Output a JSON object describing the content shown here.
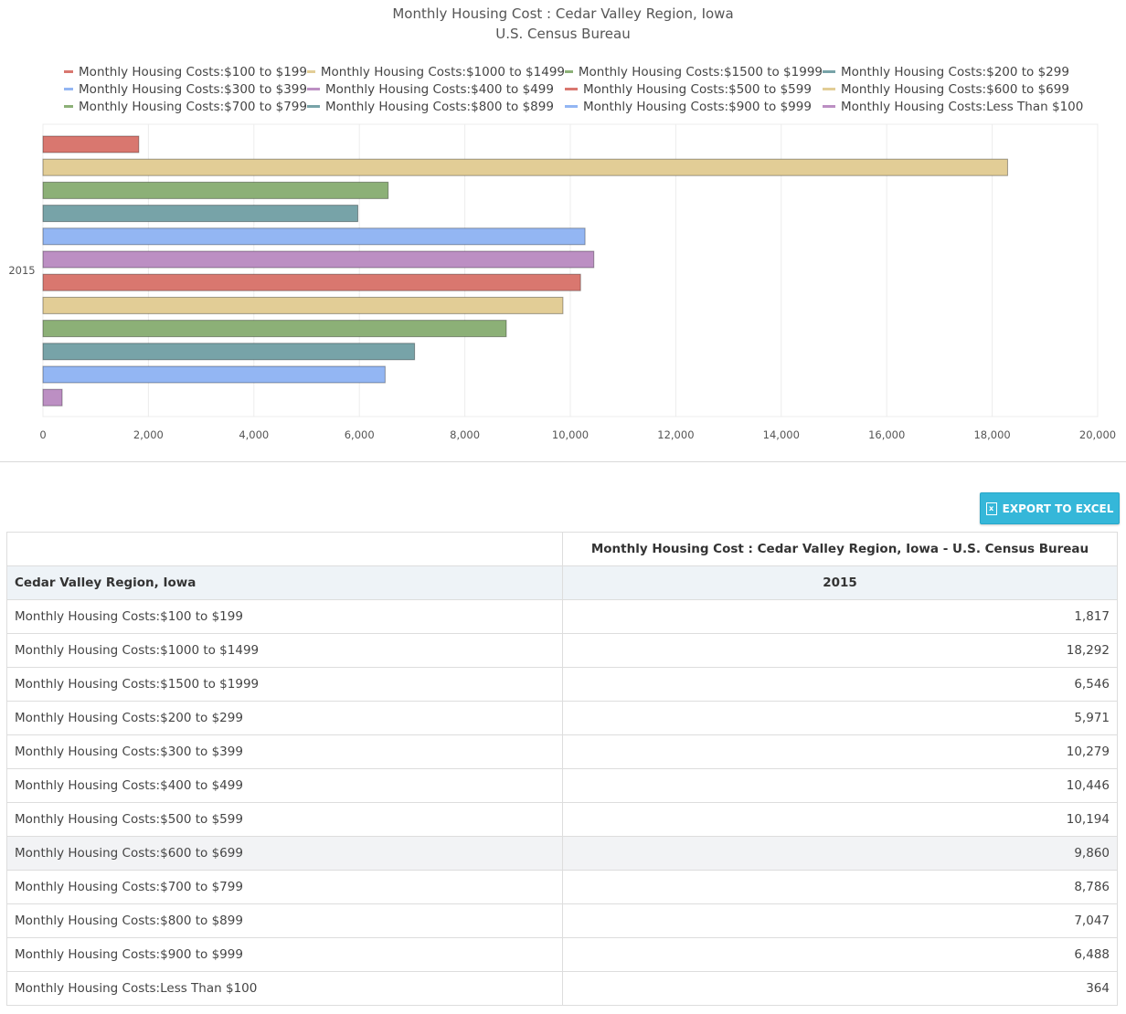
{
  "chart_data": {
    "type": "bar",
    "orientation": "horizontal",
    "title": "Monthly Housing Cost : Cedar Valley Region, Iowa",
    "subtitle": "U.S. Census Bureau",
    "categories": [
      "2015"
    ],
    "xlim": [
      0,
      20000
    ],
    "x_ticks": [
      "0",
      "2,000",
      "4,000",
      "6,000",
      "8,000",
      "10,000",
      "12,000",
      "14,000",
      "16,000",
      "18,000",
      "20,000"
    ],
    "grid": true,
    "legend_position": "top",
    "series": [
      {
        "name": "Monthly Housing Costs:$100 to $199",
        "values": [
          1817
        ],
        "color": "#d9776f"
      },
      {
        "name": "Monthly Housing Costs:$1000 to $1499",
        "values": [
          18292
        ],
        "color": "#e2cd96"
      },
      {
        "name": "Monthly Housing Costs:$1500 to $1999",
        "values": [
          6546
        ],
        "color": "#8cb077"
      },
      {
        "name": "Monthly Housing Costs:$200 to $299",
        "values": [
          5971
        ],
        "color": "#77a3a8"
      },
      {
        "name": "Monthly Housing Costs:$300 to $399",
        "values": [
          10279
        ],
        "color": "#93b6f3"
      },
      {
        "name": "Monthly Housing Costs:$400 to $499",
        "values": [
          10446
        ],
        "color": "#bc8fc3"
      },
      {
        "name": "Monthly Housing Costs:$500 to $599",
        "values": [
          10194
        ],
        "color": "#d9776f"
      },
      {
        "name": "Monthly Housing Costs:$600 to $699",
        "values": [
          9860
        ],
        "color": "#e2cd96"
      },
      {
        "name": "Monthly Housing Costs:$700 to $799",
        "values": [
          8786
        ],
        "color": "#8cb077"
      },
      {
        "name": "Monthly Housing Costs:$800 to $899",
        "values": [
          7047
        ],
        "color": "#77a3a8"
      },
      {
        "name": "Monthly Housing Costs:$900 to $999",
        "values": [
          6488
        ],
        "color": "#93b6f3"
      },
      {
        "name": "Monthly Housing Costs:Less Than $100",
        "values": [
          364
        ],
        "color": "#bc8fc3"
      }
    ]
  },
  "toolbar": {
    "export_label": "EXPORT TO EXCEL"
  },
  "table": {
    "title_header": "Monthly Housing Cost : Cedar Valley Region, Iowa - U.S. Census Bureau",
    "region_header": "Cedar Valley Region, Iowa",
    "year_header": "2015",
    "rows": [
      {
        "label": "Monthly Housing Costs:$100 to $199",
        "value": "1,817"
      },
      {
        "label": "Monthly Housing Costs:$1000 to $1499",
        "value": "18,292"
      },
      {
        "label": "Monthly Housing Costs:$1500 to $1999",
        "value": "6,546"
      },
      {
        "label": "Monthly Housing Costs:$200 to $299",
        "value": "5,971"
      },
      {
        "label": "Monthly Housing Costs:$300 to $399",
        "value": "10,279"
      },
      {
        "label": "Monthly Housing Costs:$400 to $499",
        "value": "10,446"
      },
      {
        "label": "Monthly Housing Costs:$500 to $599",
        "value": "10,194"
      },
      {
        "label": "Monthly Housing Costs:$600 to $699",
        "value": "9,860"
      },
      {
        "label": "Monthly Housing Costs:$700 to $799",
        "value": "8,786"
      },
      {
        "label": "Monthly Housing Costs:$800 to $899",
        "value": "7,047"
      },
      {
        "label": "Monthly Housing Costs:$900 to $999",
        "value": "6,488"
      },
      {
        "label": "Monthly Housing Costs:Less Than $100",
        "value": "364"
      }
    ]
  }
}
